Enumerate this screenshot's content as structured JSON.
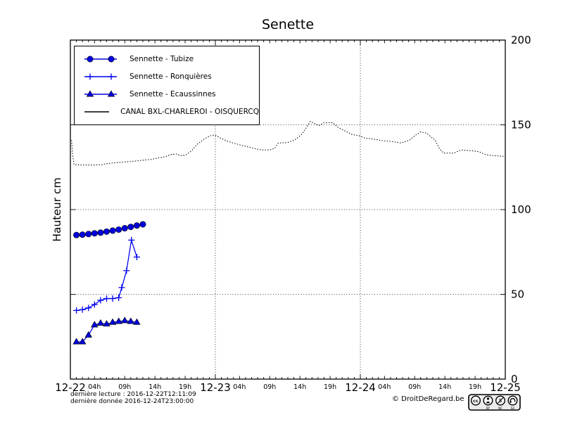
{
  "title": "Senette",
  "ylabel": "Hauteur cm",
  "footer": {
    "line1": "dernière lecture : 2016-12-22T12:11:09",
    "line2": "dernière donnée  2016-12-24T23:00:00",
    "copyright": "© DroitDeRegard.be",
    "cc_badge": {
      "labels": [
        "BY",
        "NC",
        "SA"
      ],
      "cc_text": "cc"
    }
  },
  "chart_data": {
    "type": "line",
    "title": "Senette",
    "ylabel": "Hauteur cm",
    "ylim": [
      0,
      200
    ],
    "yticks": [
      0,
      50,
      100,
      150,
      200
    ],
    "x_axis": {
      "unit": "hours from 2016-12-22 00:00",
      "range_hours": [
        0,
        72
      ],
      "day_labels": [
        "12-22",
        "12-23",
        "12-24",
        "12-25"
      ],
      "hour_labels": [
        "04h",
        "09h",
        "14h",
        "19h"
      ],
      "hour_label_positions": [
        4,
        9,
        14,
        19
      ]
    },
    "grid": {
      "x_hours": [
        24,
        48
      ],
      "y_values": [
        50,
        100,
        150
      ]
    },
    "legend_position": "upper left",
    "series": [
      {
        "name": "Sennette - Tubize",
        "color": "#0000dd",
        "marker": "circle",
        "linestyle": "solid",
        "x": [
          1,
          2,
          3,
          4,
          5,
          6,
          7,
          8,
          9,
          10,
          11,
          12
        ],
        "values": [
          85,
          85.2,
          85.6,
          86,
          86.4,
          87,
          87.6,
          88.2,
          89,
          89.8,
          90.6,
          91.3
        ]
      },
      {
        "name": "Sennette - Ronquières",
        "color": "#0000ee",
        "marker": "plus",
        "linestyle": "solid",
        "x": [
          1,
          2,
          3,
          4,
          5,
          6,
          7,
          8,
          8.5,
          9.3,
          10.1,
          11
        ],
        "values": [
          40.5,
          41,
          42,
          44,
          46.5,
          47.5,
          47.5,
          48,
          54,
          64,
          82,
          72
        ]
      },
      {
        "name": "Sennette - Ecaussinnes",
        "color": "#0000dd",
        "marker": "triangle",
        "linestyle": "solid",
        "x": [
          1,
          2,
          3,
          4,
          5,
          6,
          7,
          8,
          9,
          10,
          11
        ],
        "values": [
          22,
          22,
          26,
          32,
          33,
          32.5,
          33.5,
          34,
          34.5,
          34,
          33.5
        ]
      },
      {
        "name": "CANAL BXL-CHARLEROI  - OISQUERCQ",
        "color": "#000000",
        "marker": "none",
        "linestyle": "dotted",
        "x": [
          0.2,
          0.35,
          0.6,
          2,
          4,
          5.2,
          5.8,
          7,
          8.7,
          10.5,
          12.2,
          13.4,
          14.6,
          15.7,
          16.6,
          17.6,
          18.3,
          19.1,
          20,
          21,
          22.1,
          23.1,
          23.9,
          24.7,
          25.9,
          27,
          28.2,
          29.7,
          30.7,
          31.7,
          32.9,
          33.8,
          34.4,
          35.9,
          37.1,
          38.2,
          39.2,
          39.7,
          40.6,
          41.1,
          42,
          43.4,
          44.3,
          45.5,
          46.6,
          47.8,
          48.7,
          50.1,
          51.5,
          53.1,
          54.8,
          56.2,
          57.1,
          58,
          58.9,
          59.7,
          60.4,
          61.1,
          61.8,
          63.5,
          64.7,
          66.2,
          67.6,
          68.8,
          70.2,
          71.7
        ],
        "values": [
          141,
          133,
          126.5,
          126.3,
          126.3,
          126.5,
          127,
          127.5,
          128,
          128.5,
          129.2,
          129.6,
          130.5,
          131.2,
          132.5,
          132.8,
          131.8,
          132.2,
          134.5,
          138.5,
          141.5,
          143.5,
          144,
          142.5,
          140.5,
          139.2,
          138,
          136.8,
          135.8,
          135.2,
          135.2,
          136,
          139.3,
          139.5,
          141,
          144,
          149,
          152,
          150.5,
          149.5,
          151.3,
          151.3,
          148.5,
          146.3,
          144.3,
          143.6,
          142.3,
          141.6,
          140.8,
          140.2,
          139.3,
          141,
          143.8,
          145.8,
          145.2,
          143,
          140.8,
          136,
          133.3,
          133.4,
          135.2,
          134.8,
          134.2,
          132.4,
          131.8,
          131.4
        ]
      }
    ]
  }
}
